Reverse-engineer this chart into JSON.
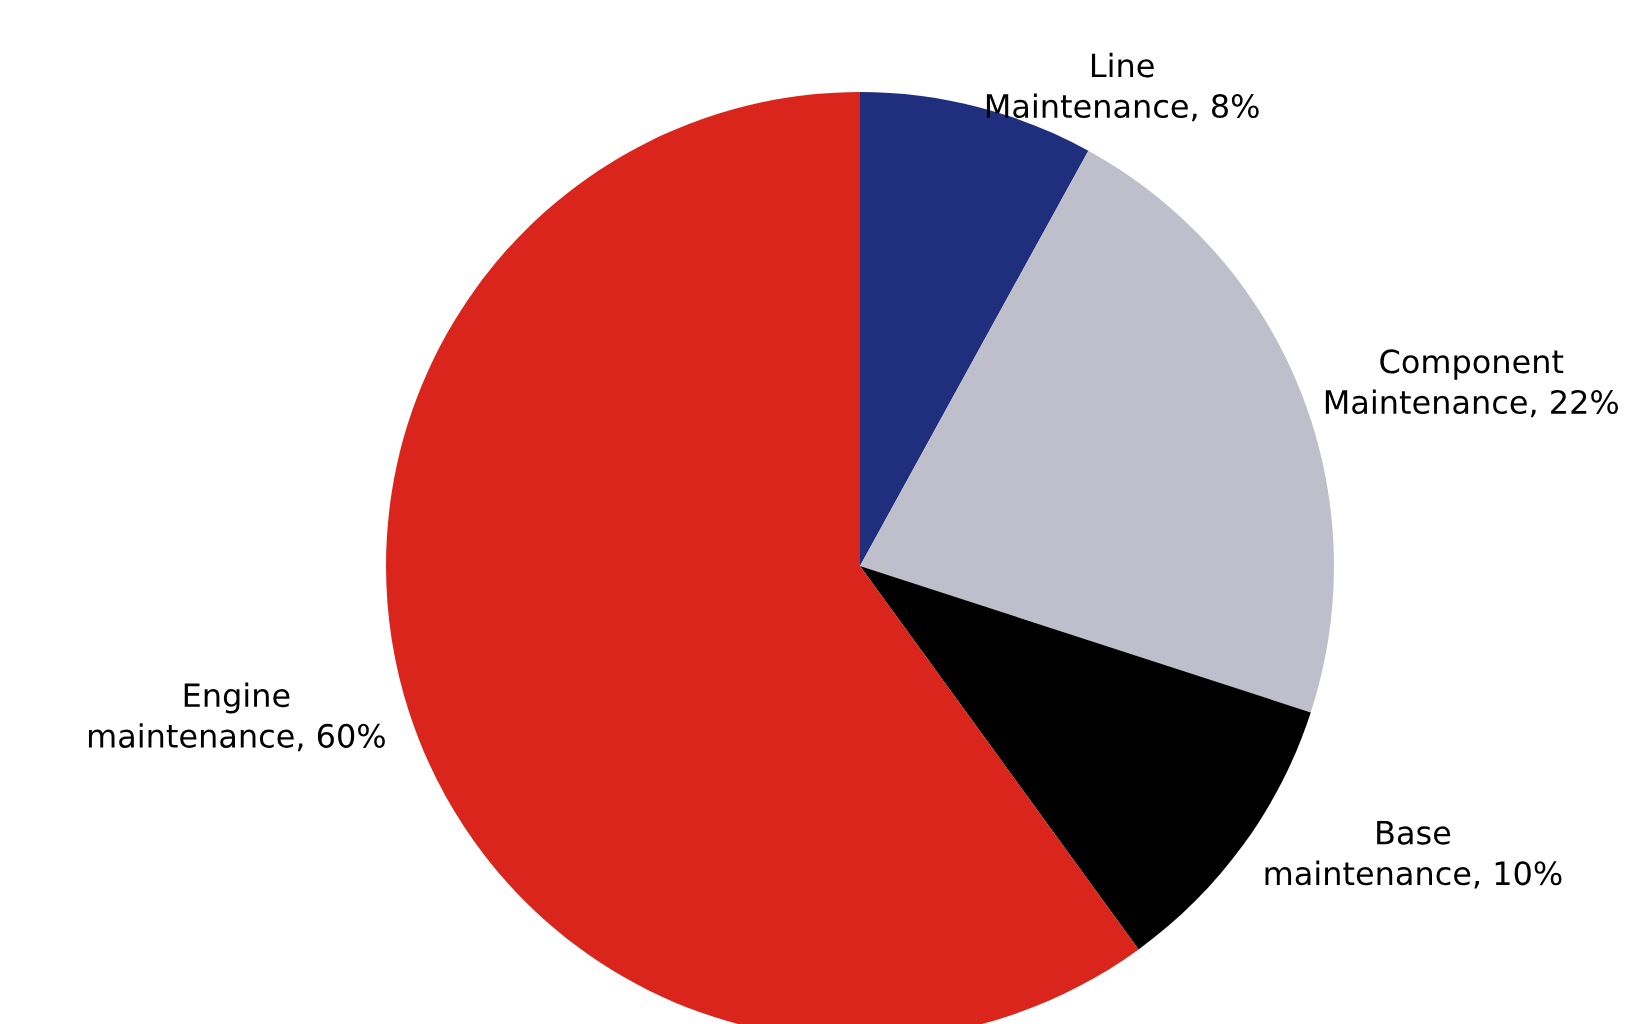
{
  "chart_data": {
    "type": "pie",
    "categories": [
      "Line Maintenance",
      "Component Maintenance",
      "Base maintenance",
      "Engine maintenance"
    ],
    "values": [
      8,
      22,
      10,
      60
    ],
    "value_labels": [
      "8%",
      "22%",
      "10%",
      "60%"
    ],
    "colors": [
      "#1f2f7e",
      "#bfbfcc",
      "#000000",
      "#da251d"
    ]
  }
}
